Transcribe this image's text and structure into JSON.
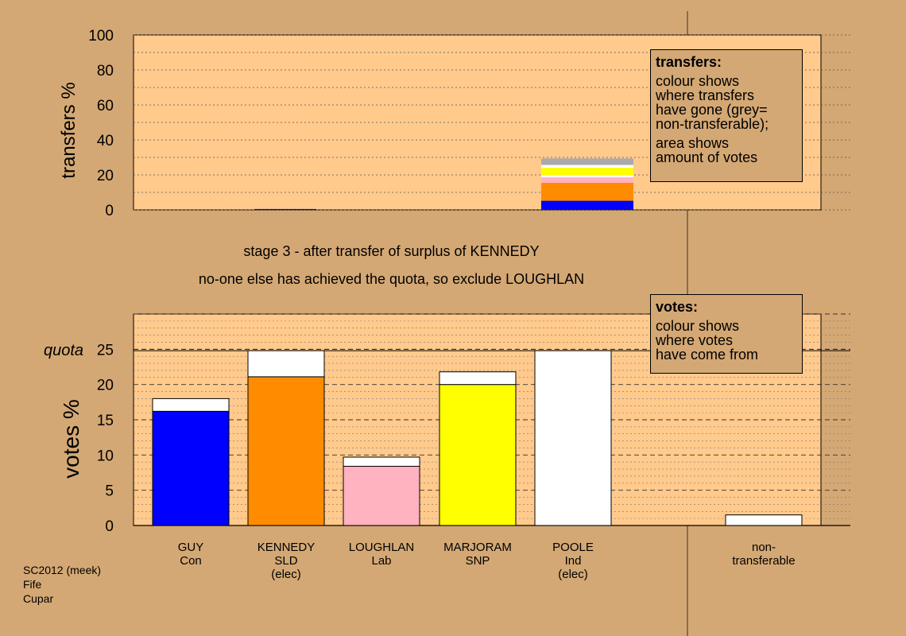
{
  "colors": {
    "background": "#d4a874",
    "plot_bg": "#ffca8c",
    "GUY": "#0000ff",
    "KENNEDY": "#ff8c00",
    "LOUGHLAN": "#ffb2c0",
    "MARJORAM": "#ffff00",
    "POOLE": "#ffffff",
    "non_transferable": "#aaaaaa",
    "transfer_white": "#ffffff"
  },
  "header": {
    "line1": "stage 3 - after transfer of surplus of KENNEDY",
    "line2": "no-one else has achieved the quota, so exclude LOUGHLAN"
  },
  "legend_transfers": {
    "title": "transfers:",
    "lines1": [
      "colour shows",
      "where transfers",
      "have gone (grey=",
      "non-transferable);"
    ],
    "lines2": [
      "area shows",
      "amount of votes"
    ]
  },
  "legend_votes": {
    "title": "votes:",
    "lines": [
      "colour shows",
      "where votes",
      "have come from"
    ]
  },
  "footer": {
    "line1": "SC2012 (meek)",
    "line2": "Fife",
    "line3": "Cupar"
  },
  "chart_data": [
    {
      "type": "bar",
      "stacked": true,
      "ylabel": "transfers %",
      "ylim": [
        0,
        100
      ],
      "yticks": [
        0,
        20,
        40,
        60,
        80,
        100
      ],
      "grid": "dotted every 10",
      "categories": [
        "GUY",
        "KENNEDY",
        "LOUGHLAN",
        "MARJORAM",
        "POOLE",
        "non-transferable"
      ],
      "bars": [
        {
          "category": "GUY",
          "segments": []
        },
        {
          "category": "KENNEDY",
          "segments": [
            {
              "to": "GUY",
              "value": 0.5
            }
          ]
        },
        {
          "category": "LOUGHLAN",
          "segments": []
        },
        {
          "category": "MARJORAM",
          "segments": []
        },
        {
          "category": "POOLE",
          "segments": [
            {
              "to": "GUY",
              "value": 5.2
            },
            {
              "to": "KENNEDY",
              "value": 10.3
            },
            {
              "to": "LOUGHLAN",
              "value": 3.1
            },
            {
              "to": "transfer_white",
              "value": 1.2
            },
            {
              "to": "MARJORAM",
              "value": 4.3
            },
            {
              "to": "transfer_white",
              "value": 1.6
            },
            {
              "to": "non_transferable",
              "value": 3.7
            }
          ]
        },
        {
          "category": "non-transferable",
          "segments": []
        }
      ]
    },
    {
      "type": "bar",
      "stacked": true,
      "ylabel": "votes %",
      "ylim": [
        0,
        30
      ],
      "yticks": [
        0,
        5,
        10,
        15,
        20,
        25
      ],
      "quota": 24.8,
      "quota_label": "quota",
      "categories": [
        "GUY",
        "KENNEDY",
        "LOUGHLAN",
        "MARJORAM",
        "POOLE",
        "non-transferable"
      ],
      "category_labels": [
        [
          "GUY",
          "Con"
        ],
        [
          "KENNEDY",
          "SLD",
          "(elec)"
        ],
        [
          "LOUGHLAN",
          "Lab"
        ],
        [
          "MARJORAM",
          "SNP"
        ],
        [
          "POOLE",
          "Ind",
          "(elec)"
        ],
        [
          "non-",
          "transferable"
        ]
      ],
      "bars": [
        {
          "category": "GUY",
          "segments": [
            {
              "from": "GUY",
              "value": 16.2
            },
            {
              "from": "transfer_white",
              "value": 1.8
            }
          ]
        },
        {
          "category": "KENNEDY",
          "segments": [
            {
              "from": "KENNEDY",
              "value": 21.1
            },
            {
              "from": "transfer_white",
              "value": 3.7
            }
          ]
        },
        {
          "category": "LOUGHLAN",
          "segments": [
            {
              "from": "LOUGHLAN",
              "value": 8.4
            },
            {
              "from": "transfer_white",
              "value": 1.3
            }
          ]
        },
        {
          "category": "MARJORAM",
          "segments": [
            {
              "from": "MARJORAM",
              "value": 20.0
            },
            {
              "from": "transfer_white",
              "value": 1.8
            }
          ]
        },
        {
          "category": "POOLE",
          "segments": [
            {
              "from": "POOLE",
              "value": 24.8
            }
          ]
        },
        {
          "category": "non-transferable",
          "segments": [
            {
              "from": "transfer_white",
              "value": 1.5
            }
          ]
        }
      ]
    }
  ]
}
